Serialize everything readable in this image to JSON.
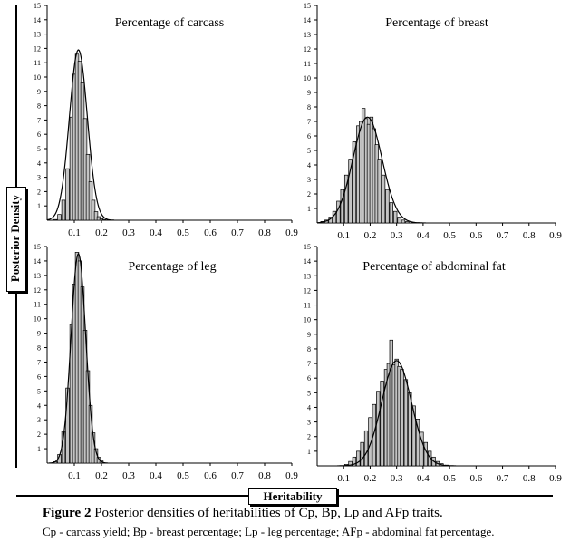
{
  "figure": {
    "axis_title_y": "Posterior Density",
    "axis_title_x": "Heritability",
    "caption_label": "Figure 2",
    "caption_text": "Posterior densities of heritabilities of Cp, Bp, Lp and AFp traits.",
    "note": "Cp - carcass yield; Bp - breast percentage; Lp - leg percentage; AFp - abdominal fat percentage."
  },
  "chart_data": [
    {
      "type": "bar",
      "title": "Percentage of carcass",
      "xlabel": "",
      "ylabel": "",
      "xlim": [
        0,
        0.9
      ],
      "ylim": [
        0,
        15
      ],
      "x_ticks": [
        "0.1",
        "0.2",
        "0.3",
        "0.4",
        "0.5",
        "0.6",
        "0.7",
        "0.8",
        "0.9"
      ],
      "y_ticks": [
        1,
        2,
        3,
        4,
        5,
        6,
        7,
        8,
        9,
        10,
        11,
        12,
        13,
        14,
        15
      ],
      "hist": [
        [
          0.03,
          0.05
        ],
        [
          0.045,
          0.4
        ],
        [
          0.06,
          1.4
        ],
        [
          0.075,
          3.6
        ],
        [
          0.09,
          7.2
        ],
        [
          0.1,
          10.2
        ],
        [
          0.11,
          11.6
        ],
        [
          0.12,
          11.1
        ],
        [
          0.13,
          9.6
        ],
        [
          0.14,
          7.1
        ],
        [
          0.15,
          4.6
        ],
        [
          0.16,
          2.7
        ],
        [
          0.17,
          1.4
        ],
        [
          0.18,
          0.6
        ],
        [
          0.19,
          0.25
        ],
        [
          0.2,
          0.1
        ],
        [
          0.21,
          0.05
        ]
      ],
      "density": {
        "mean": 0.115,
        "sd": 0.033,
        "peak": 11.9
      }
    },
    {
      "type": "bar",
      "title": "Percentage of breast",
      "xlabel": "",
      "ylabel": "",
      "xlim": [
        0,
        0.9
      ],
      "ylim": [
        0,
        15
      ],
      "x_ticks": [
        "0.1",
        "0.2",
        "0.3",
        "0.4",
        "0.5",
        "0.6",
        "0.7",
        "0.8",
        "0.9"
      ],
      "y_ticks": [
        1,
        2,
        3,
        4,
        5,
        6,
        7,
        8,
        9,
        10,
        11,
        12,
        13,
        14,
        15
      ],
      "hist": [
        [
          0.02,
          0.1
        ],
        [
          0.035,
          0.2
        ],
        [
          0.05,
          0.4
        ],
        [
          0.065,
          0.8
        ],
        [
          0.08,
          1.5
        ],
        [
          0.095,
          2.3
        ],
        [
          0.11,
          3.3
        ],
        [
          0.125,
          4.4
        ],
        [
          0.14,
          5.6
        ],
        [
          0.155,
          6.7
        ],
        [
          0.165,
          7.0
        ],
        [
          0.175,
          7.9
        ],
        [
          0.185,
          7.2
        ],
        [
          0.195,
          6.8
        ],
        [
          0.205,
          7.3
        ],
        [
          0.215,
          6.5
        ],
        [
          0.225,
          5.4
        ],
        [
          0.235,
          4.4
        ],
        [
          0.25,
          3.3
        ],
        [
          0.265,
          2.3
        ],
        [
          0.28,
          1.4
        ],
        [
          0.295,
          0.8
        ],
        [
          0.31,
          0.4
        ],
        [
          0.325,
          0.2
        ],
        [
          0.34,
          0.1
        ]
      ],
      "density": {
        "mean": 0.19,
        "sd": 0.055,
        "peak": 7.3
      }
    },
    {
      "type": "bar",
      "title": "Percentage of leg",
      "xlabel": "",
      "ylabel": "",
      "xlim": [
        0,
        0.9
      ],
      "ylim": [
        0,
        15
      ],
      "x_ticks": [
        "0.1",
        "0.2",
        "0.3",
        "0.4",
        "0.5",
        "0.6",
        "0.7",
        "0.8",
        "0.9"
      ],
      "y_ticks": [
        1,
        2,
        3,
        4,
        5,
        6,
        7,
        8,
        9,
        10,
        11,
        12,
        13,
        14,
        15
      ],
      "hist": [
        [
          0.03,
          0.1
        ],
        [
          0.045,
          0.6
        ],
        [
          0.06,
          2.2
        ],
        [
          0.075,
          5.2
        ],
        [
          0.09,
          9.6
        ],
        [
          0.1,
          12.4
        ],
        [
          0.11,
          14.6
        ],
        [
          0.12,
          14.0
        ],
        [
          0.13,
          12.2
        ],
        [
          0.14,
          9.2
        ],
        [
          0.15,
          6.4
        ],
        [
          0.16,
          4.0
        ],
        [
          0.17,
          2.1
        ],
        [
          0.18,
          1.0
        ],
        [
          0.19,
          0.4
        ],
        [
          0.2,
          0.15
        ]
      ],
      "density": {
        "mean": 0.115,
        "sd": 0.027,
        "peak": 14.5
      }
    },
    {
      "type": "bar",
      "title": "Percentage of abdominal fat",
      "xlabel": "",
      "ylabel": "",
      "xlim": [
        0,
        0.9
      ],
      "ylim": [
        0,
        15
      ],
      "x_ticks": [
        "0.1",
        "0.2",
        "0.3",
        "0.4",
        "0.5",
        "0.6",
        "0.7",
        "0.8",
        "0.9"
      ],
      "y_ticks": [
        1,
        2,
        3,
        4,
        5,
        6,
        7,
        8,
        9,
        10,
        11,
        12,
        13,
        14,
        15
      ],
      "hist": [
        [
          0.11,
          0.1
        ],
        [
          0.125,
          0.3
        ],
        [
          0.14,
          0.6
        ],
        [
          0.155,
          1.0
        ],
        [
          0.17,
          1.6
        ],
        [
          0.185,
          2.4
        ],
        [
          0.2,
          3.3
        ],
        [
          0.215,
          4.2
        ],
        [
          0.23,
          5.1
        ],
        [
          0.245,
          5.8
        ],
        [
          0.26,
          6.6
        ],
        [
          0.27,
          7.0
        ],
        [
          0.28,
          8.6
        ],
        [
          0.29,
          6.9
        ],
        [
          0.3,
          7.3
        ],
        [
          0.31,
          6.8
        ],
        [
          0.32,
          6.6
        ],
        [
          0.335,
          5.9
        ],
        [
          0.35,
          5.0
        ],
        [
          0.365,
          4.1
        ],
        [
          0.38,
          3.2
        ],
        [
          0.395,
          2.3
        ],
        [
          0.41,
          1.6
        ],
        [
          0.425,
          1.0
        ],
        [
          0.44,
          0.6
        ],
        [
          0.455,
          0.3
        ],
        [
          0.47,
          0.15
        ],
        [
          0.49,
          0.05
        ]
      ],
      "density": {
        "mean": 0.3,
        "sd": 0.056,
        "peak": 7.2
      }
    }
  ]
}
